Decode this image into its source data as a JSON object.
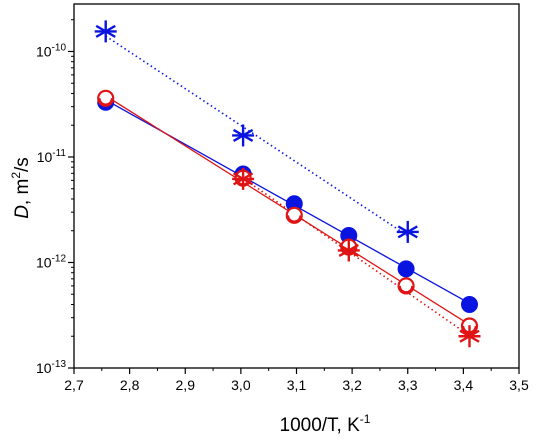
{
  "chart_data": {
    "type": "scatter",
    "xlabel": "1000/T, K",
    "xlabel_sup": "-1",
    "ylabel_italic": "D",
    "ylabel_rest": ", m",
    "ylabel_sup": "2",
    "ylabel_tail": "/s",
    "xlim": [
      2.7,
      3.5
    ],
    "ylim_log10": [
      -13,
      -9.55
    ],
    "y_scale": "log",
    "x_ticks": [
      {
        "value": 2.7,
        "label": "2,7"
      },
      {
        "value": 2.8,
        "label": "2,8"
      },
      {
        "value": 2.9,
        "label": "2,9"
      },
      {
        "value": 3.0,
        "label": "3,0"
      },
      {
        "value": 3.1,
        "label": "3,1"
      },
      {
        "value": 3.2,
        "label": "3,2"
      },
      {
        "value": 3.3,
        "label": "3,3"
      },
      {
        "value": 3.4,
        "label": "3,4"
      },
      {
        "value": 3.5,
        "label": "3,5"
      }
    ],
    "y_ticks": [
      {
        "exp": -13,
        "base": "10",
        "sup": "-13"
      },
      {
        "exp": -12,
        "base": "10",
        "sup": "-12"
      },
      {
        "exp": -11,
        "base": "10",
        "sup": "-11"
      },
      {
        "exp": -10,
        "base": "10",
        "sup": "-10"
      }
    ],
    "series": [
      {
        "marker": "filled-circle",
        "color": "#0a14e0",
        "fit": "solid",
        "x": [
          2.757,
          3.004,
          3.096,
          3.194,
          3.297,
          3.411
        ],
        "y": [
          3.3e-11,
          6.9e-12,
          3.6e-12,
          1.8e-12,
          8.7e-13,
          4e-13
        ]
      },
      {
        "marker": "open-circle",
        "color": "#e01414",
        "fit": "solid",
        "x": [
          2.757,
          3.004,
          3.096,
          3.194,
          3.297,
          3.411
        ],
        "y": [
          3.6e-11,
          6.3e-12,
          2.8e-12,
          1.4e-12,
          6e-13,
          2.5e-13
        ]
      },
      {
        "marker": "asterisk",
        "color": "#0a14e0",
        "fit": "dotted",
        "x": [
          2.757,
          3.004,
          3.3
        ],
        "y": [
          1.55e-10,
          1.6e-11,
          1.95e-12
        ]
      },
      {
        "marker": "asterisk",
        "color": "#e01414",
        "fit": "dotted",
        "x": [
          3.004,
          3.194,
          3.411
        ],
        "y": [
          6.2e-12,
          1.3e-12,
          2e-13
        ]
      }
    ]
  }
}
